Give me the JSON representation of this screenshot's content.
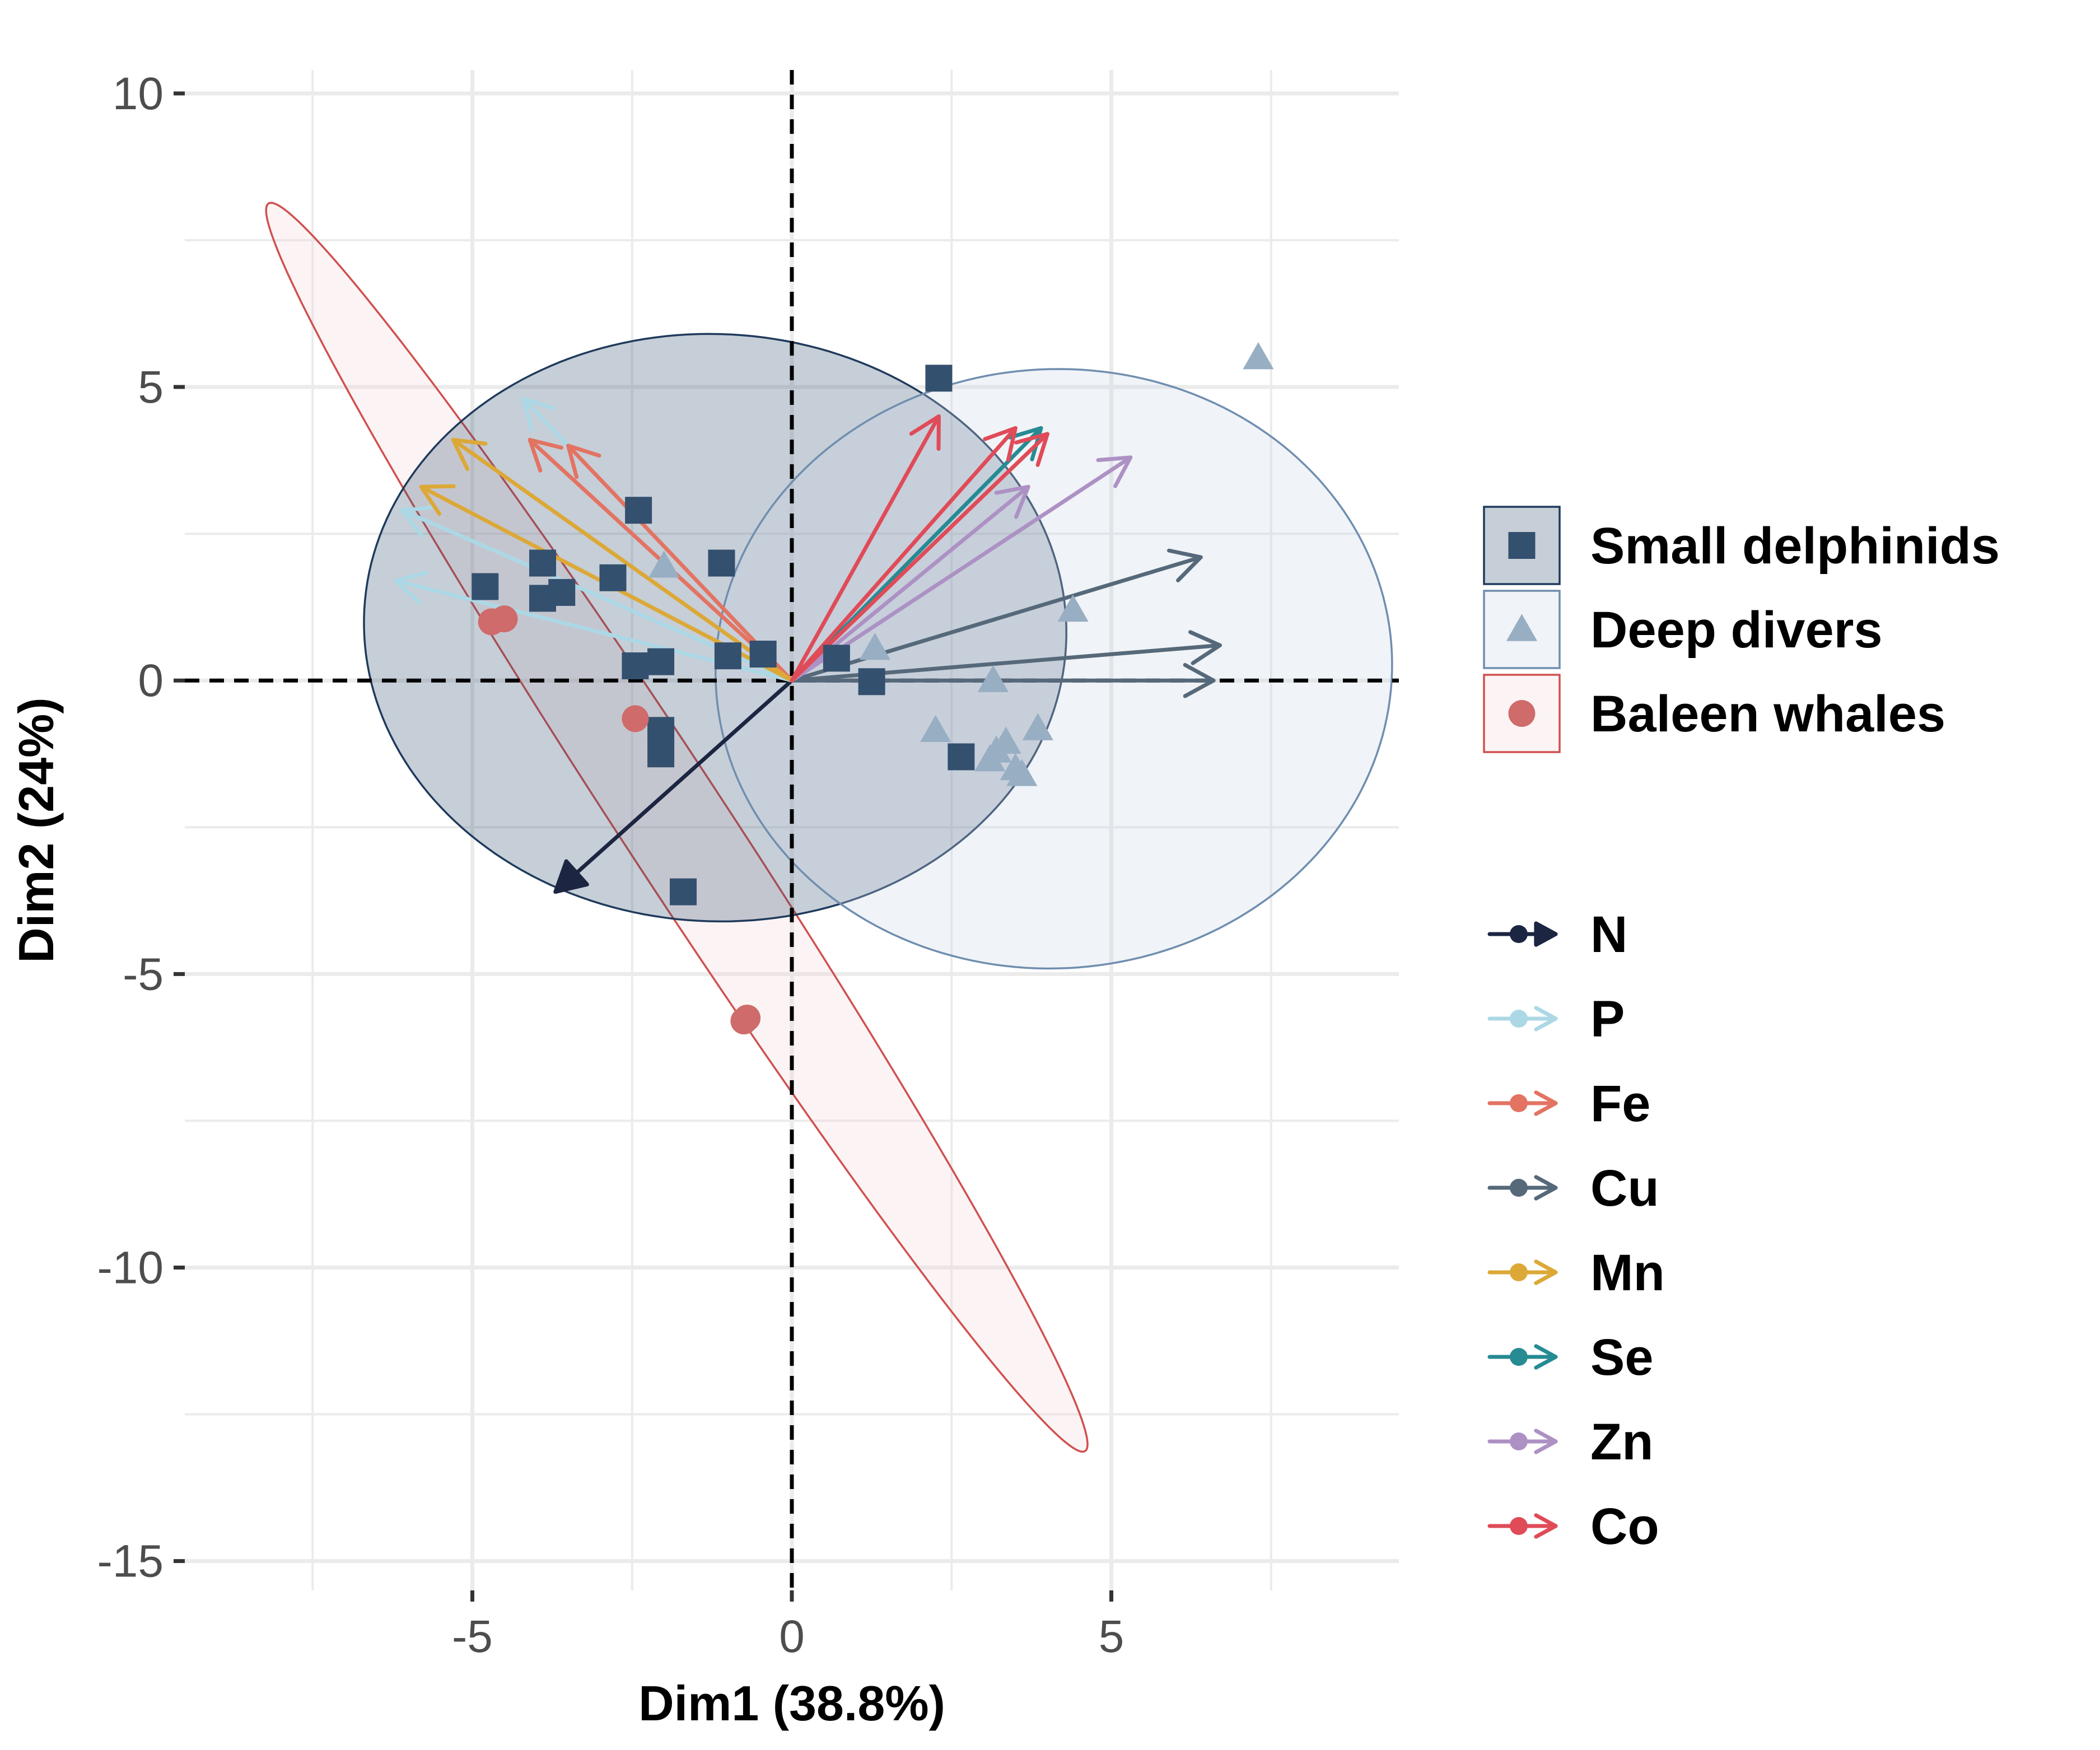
{
  "chart_data": {
    "type": "scatter",
    "title": "",
    "xlabel": "Dim1 (38.8%)",
    "ylabel": "Dim2 (24%)",
    "xlim": [
      -9.5,
      9.5
    ],
    "ylim": [
      -15.5,
      10.4
    ],
    "x_ticks": [
      -5,
      0,
      5
    ],
    "x_tick_labels": [
      "-5",
      "0",
      "5"
    ],
    "y_ticks": [
      10,
      5,
      0,
      -5,
      -10,
      -15
    ],
    "y_tick_labels": [
      "10",
      "5",
      "0",
      "-5",
      "-10",
      "-15"
    ],
    "grid": true,
    "legend_position": "right",
    "groups": [
      {
        "name": "Small delphinids",
        "marker": "square",
        "color": "#34506f",
        "ellipse_fill": "#34506f",
        "ellipse_stroke": "#1f3a5c",
        "points": [
          [
            2.3,
            5.15
          ],
          [
            -2.4,
            2.9
          ],
          [
            -1.1,
            2.0
          ],
          [
            -3.9,
            2.0
          ],
          [
            -2.8,
            1.75
          ],
          [
            -4.8,
            1.6
          ],
          [
            -3.6,
            1.5
          ],
          [
            -3.9,
            1.4
          ],
          [
            -1.0,
            0.42
          ],
          [
            -0.45,
            0.45
          ],
          [
            0.7,
            0.38
          ],
          [
            1.25,
            -0.02
          ],
          [
            -2.45,
            0.25
          ],
          [
            -2.05,
            0.32
          ],
          [
            -2.05,
            -0.85
          ],
          [
            -2.05,
            -1.25
          ],
          [
            2.65,
            -1.3
          ],
          [
            -1.7,
            -3.6
          ]
        ]
      },
      {
        "name": "Deep divers",
        "marker": "triangle",
        "color": "#98aec3",
        "ellipse_fill": "#c8d5e2",
        "ellipse_stroke": "#6f8eaf",
        "points": [
          [
            7.3,
            5.5
          ],
          [
            -2.0,
            1.95
          ],
          [
            4.4,
            1.2
          ],
          [
            1.3,
            0.55
          ],
          [
            3.15,
            0.0
          ],
          [
            2.25,
            -0.85
          ],
          [
            3.85,
            -0.82
          ],
          [
            3.35,
            -1.05
          ],
          [
            3.2,
            -1.2
          ],
          [
            3.1,
            -1.35
          ],
          [
            3.5,
            -1.5
          ],
          [
            3.6,
            -1.6
          ]
        ]
      },
      {
        "name": "Baleen whales",
        "marker": "circle",
        "color": "#cf6b6b",
        "ellipse_fill": "#f3d6d6",
        "ellipse_stroke": "#d05050",
        "points": [
          [
            -4.7,
            1.0
          ],
          [
            -4.5,
            1.05
          ],
          [
            -2.45,
            -0.65
          ],
          [
            -0.75,
            -5.8
          ],
          [
            -0.7,
            -5.75
          ]
        ]
      }
    ],
    "ellipses": [
      {
        "group": "Baleen whales",
        "center": [
          -1.8,
          -2.5
        ],
        "semi_major": 12.4,
        "semi_minor": 0.85,
        "angle_deg": -59
      },
      {
        "group": "Small delphinids",
        "center": [
          -1.2,
          0.9
        ],
        "semi_major": 5.5,
        "semi_minor": 5.0,
        "angle_deg": -5
      },
      {
        "group": "Deep divers",
        "center": [
          4.1,
          0.2
        ],
        "semi_major": 5.3,
        "semi_minor": 5.1,
        "angle_deg": 10
      }
    ],
    "variables": [
      {
        "name": "N",
        "color": "#1c2541",
        "arrows": [
          [
            -3.7,
            -3.6
          ]
        ]
      },
      {
        "name": "P",
        "color": "#acd8e6",
        "arrows": [
          [
            -4.2,
            4.8
          ],
          [
            -6.1,
            2.9
          ],
          [
            -6.2,
            1.7
          ]
        ]
      },
      {
        "name": "Fe",
        "color": "#e37362",
        "arrows": [
          [
            -4.1,
            4.1
          ],
          [
            -3.5,
            4.0
          ]
        ]
      },
      {
        "name": "Cu",
        "color": "#56697a",
        "arrows": [
          [
            6.4,
            2.1
          ],
          [
            6.7,
            0.6
          ],
          [
            6.6,
            0.0
          ]
        ]
      },
      {
        "name": "Mn",
        "color": "#dca837",
        "arrows": [
          [
            -5.3,
            4.1
          ],
          [
            -5.8,
            3.3
          ]
        ]
      },
      {
        "name": "Se",
        "color": "#268b93",
        "arrows": [
          [
            3.9,
            4.3
          ]
        ]
      },
      {
        "name": "Zn",
        "color": "#ad91c4",
        "arrows": [
          [
            5.3,
            3.8
          ],
          [
            3.7,
            3.3
          ]
        ]
      },
      {
        "name": "Co",
        "color": "#e04b58",
        "arrows": [
          [
            2.3,
            4.5
          ],
          [
            3.5,
            4.3
          ],
          [
            4.0,
            4.2
          ]
        ]
      }
    ],
    "reference_lines": {
      "x": 0,
      "y": 0,
      "style": "dashed"
    },
    "group_legend": [
      "Small delphinids",
      "Deep divers",
      "Baleen whales"
    ],
    "variable_legend": [
      "N",
      "P",
      "Fe",
      "Cu",
      "Mn",
      "Se",
      "Zn",
      "Co"
    ]
  }
}
